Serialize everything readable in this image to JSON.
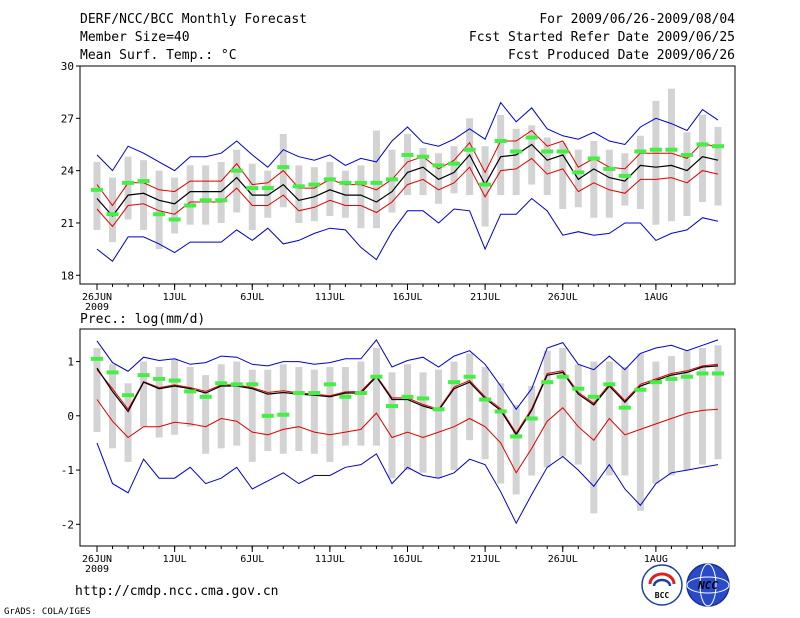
{
  "header": {
    "title": "DERF/NCC/BCC Monthly Forecast",
    "member_size": "Member Size=40",
    "period": "For 2009/06/26-2009/08/04",
    "refer_date": "Fcst Started Refer Date 2009/06/25",
    "produced_date": "Fcst Produced Date 2009/06/26"
  },
  "footer": {
    "url": "http://cmdp.ncc.cma.gov.cn",
    "grads": "GrADS: COLA/IGES",
    "logo_bcc_text": "BCC",
    "logo_ncc_text": "NCC"
  },
  "colors": {
    "ensemble_mean": "#000000",
    "inner_range": "#e00000",
    "outer_range": "#0000cc",
    "member_bar": "#d3d3d3",
    "observed_marker": "#44ee44"
  },
  "chart_data": [
    {
      "type": "line",
      "title": "Mean Surf. Temp.: °C",
      "x_start": "2009-06-26",
      "x_tick_labels": [
        "26JUN",
        "1JUL",
        "6JUL",
        "11JUL",
        "16JUL",
        "21JUL",
        "26JUL",
        "1AUG"
      ],
      "x_tick_days": [
        0,
        5,
        10,
        15,
        20,
        25,
        30,
        36
      ],
      "x_year_label": "2009",
      "ylim": [
        17.5,
        30
      ],
      "y_ticks": [
        18,
        21,
        24,
        27,
        30
      ],
      "y_tick_labels": [
        "18",
        "21",
        "24",
        "27",
        "30"
      ],
      "series": [
        {
          "name": "ensemble mean",
          "values": [
            22.4,
            21.4,
            22.6,
            22.7,
            22.3,
            22.1,
            22.8,
            22.8,
            22.8,
            23.6,
            22.6,
            22.6,
            23.2,
            22.3,
            22.5,
            22.9,
            22.6,
            22.6,
            22.2,
            22.8,
            23.9,
            24.2,
            23.5,
            23.9,
            24.9,
            23.2,
            24.8,
            24.9,
            25.5,
            24.6,
            24.9,
            23.5,
            24.1,
            23.6,
            23.4,
            24.3,
            24.2,
            24.3,
            24.0,
            24.8,
            24.6
          ]
        },
        {
          "name": "upper inner",
          "values": [
            23.2,
            22.0,
            23.3,
            23.3,
            22.9,
            22.8,
            23.4,
            23.4,
            23.4,
            24.4,
            23.2,
            23.3,
            24.0,
            23.0,
            23.0,
            23.5,
            23.2,
            23.2,
            22.9,
            23.5,
            24.5,
            24.8,
            24.1,
            24.6,
            25.6,
            23.9,
            25.7,
            25.7,
            26.3,
            25.4,
            25.7,
            24.2,
            24.7,
            24.2,
            24.1,
            25.0,
            25.0,
            25.0,
            24.7,
            25.6,
            25.3
          ]
        },
        {
          "name": "lower inner",
          "values": [
            21.8,
            20.8,
            22.0,
            22.1,
            21.7,
            21.5,
            22.2,
            22.2,
            22.2,
            23.0,
            22.0,
            22.0,
            22.6,
            21.7,
            21.9,
            22.3,
            22.0,
            22.0,
            21.6,
            22.2,
            23.2,
            23.5,
            22.9,
            23.3,
            24.2,
            22.5,
            24.0,
            24.1,
            24.7,
            23.8,
            24.1,
            22.8,
            23.3,
            22.9,
            22.7,
            23.5,
            23.5,
            23.6,
            23.3,
            24.0,
            23.8
          ]
        },
        {
          "name": "max",
          "values": [
            24.9,
            24.0,
            25.4,
            25.0,
            24.5,
            24.0,
            24.8,
            24.8,
            25.0,
            25.7,
            24.9,
            24.2,
            25.2,
            24.8,
            24.6,
            24.9,
            24.3,
            24.7,
            24.5,
            25.7,
            26.5,
            25.6,
            25.4,
            25.8,
            26.4,
            25.8,
            27.9,
            26.8,
            27.6,
            26.4,
            26.0,
            25.8,
            26.2,
            25.7,
            25.5,
            26.5,
            27.0,
            26.7,
            26.3,
            27.5,
            26.9
          ]
        },
        {
          "name": "min",
          "values": [
            19.5,
            18.8,
            20.2,
            20.2,
            19.8,
            19.3,
            19.9,
            19.9,
            19.9,
            20.6,
            20.0,
            20.7,
            19.8,
            20.0,
            20.4,
            20.7,
            20.6,
            19.6,
            18.9,
            20.5,
            21.7,
            21.7,
            21.0,
            21.8,
            21.7,
            19.5,
            21.5,
            21.5,
            22.4,
            21.7,
            20.3,
            20.5,
            20.3,
            20.4,
            21.0,
            21.0,
            20.0,
            20.4,
            20.6,
            21.3,
            21.1
          ]
        },
        {
          "name": "bar top",
          "values": [
            24.5,
            23.6,
            24.8,
            24.6,
            24.0,
            23.6,
            24.3,
            24.3,
            24.5,
            25.2,
            24.4,
            24.0,
            26.1,
            24.3,
            24.2,
            24.5,
            24.0,
            24.3,
            26.3,
            25.2,
            26.1,
            25.3,
            25.0,
            25.4,
            27.0,
            25.4,
            27.2,
            26.4,
            26.6,
            25.9,
            25.6,
            25.2,
            25.7,
            25.2,
            25.0,
            26.0,
            28.0,
            28.7,
            26.2,
            27.2,
            26.5
          ]
        },
        {
          "name": "bar bottom",
          "values": [
            20.6,
            19.9,
            21.2,
            20.6,
            19.5,
            20.4,
            20.9,
            20.9,
            21.0,
            21.6,
            20.6,
            21.3,
            21.9,
            21.0,
            21.1,
            21.4,
            21.3,
            20.7,
            20.7,
            21.6,
            22.6,
            22.6,
            22.1,
            22.7,
            22.6,
            20.8,
            22.6,
            22.6,
            23.2,
            22.6,
            21.8,
            21.9,
            21.3,
            21.3,
            22.0,
            21.8,
            20.9,
            21.1,
            21.4,
            22.2,
            22.0
          ]
        },
        {
          "name": "observed",
          "values": [
            22.9,
            21.5,
            23.3,
            23.4,
            21.5,
            21.2,
            22.0,
            22.3,
            22.3,
            24.0,
            23.0,
            23.0,
            24.2,
            23.1,
            23.2,
            23.5,
            23.3,
            23.3,
            23.3,
            23.5,
            24.9,
            24.8,
            24.3,
            24.4,
            25.2,
            23.2,
            25.7,
            25.1,
            25.9,
            25.1,
            25.1,
            23.9,
            24.7,
            24.1,
            23.7,
            25.1,
            25.2,
            25.2,
            24.9,
            25.5,
            25.4
          ]
        }
      ]
    },
    {
      "type": "line",
      "title": "Prec.: log(mm/d)",
      "x_start": "2009-06-26",
      "x_tick_labels": [
        "26JUN",
        "1JUL",
        "6JUL",
        "11JUL",
        "16JUL",
        "21JUL",
        "26JUL",
        "1AUG"
      ],
      "x_tick_days": [
        0,
        5,
        10,
        15,
        20,
        25,
        30,
        36
      ],
      "x_year_label": "2009",
      "ylim": [
        -2.4,
        1.6
      ],
      "y_ticks": [
        -2,
        -1,
        0,
        1
      ],
      "y_tick_labels": [
        "-2",
        "-1",
        "0",
        "1"
      ],
      "series": [
        {
          "name": "ensemble mean",
          "values": [
            0.88,
            0.45,
            0.08,
            0.62,
            0.5,
            0.55,
            0.5,
            0.42,
            0.55,
            0.55,
            0.5,
            0.4,
            0.43,
            0.4,
            0.38,
            0.35,
            0.42,
            0.42,
            0.72,
            0.3,
            0.3,
            0.18,
            0.1,
            0.5,
            0.62,
            0.32,
            0.1,
            -0.35,
            0.1,
            0.75,
            0.8,
            0.4,
            0.2,
            0.55,
            0.25,
            0.55,
            0.65,
            0.75,
            0.8,
            0.9,
            0.92
          ]
        },
        {
          "name": "upper inner",
          "values": [
            0.85,
            0.5,
            0.12,
            0.63,
            0.52,
            0.57,
            0.52,
            0.45,
            0.57,
            0.57,
            0.52,
            0.43,
            0.46,
            0.42,
            0.4,
            0.37,
            0.44,
            0.45,
            0.74,
            0.33,
            0.33,
            0.21,
            0.12,
            0.53,
            0.65,
            0.35,
            0.13,
            -0.32,
            0.13,
            0.78,
            0.83,
            0.43,
            0.23,
            0.58,
            0.28,
            0.58,
            0.68,
            0.78,
            0.83,
            0.92,
            0.95
          ]
        },
        {
          "name": "lower inner",
          "values": [
            0.3,
            -0.1,
            -0.4,
            -0.2,
            -0.2,
            -0.12,
            -0.15,
            -0.2,
            -0.05,
            -0.1,
            -0.3,
            -0.35,
            -0.25,
            -0.2,
            -0.3,
            -0.35,
            -0.3,
            -0.25,
            0.05,
            -0.4,
            -0.3,
            -0.4,
            -0.3,
            -0.2,
            -0.05,
            -0.2,
            -0.5,
            -1.05,
            -0.6,
            -0.1,
            0.15,
            -0.2,
            -0.45,
            -0.05,
            -0.35,
            -0.25,
            -0.15,
            -0.05,
            0.05,
            0.1,
            0.12
          ]
        },
        {
          "name": "max",
          "values": [
            1.38,
            0.98,
            0.82,
            1.08,
            1.02,
            1.05,
            0.95,
            0.98,
            1.1,
            1.08,
            0.95,
            0.92,
            1.0,
            1.0,
            0.95,
            0.98,
            1.05,
            1.05,
            1.4,
            0.9,
            1.02,
            1.08,
            0.9,
            1.1,
            1.2,
            0.95,
            0.55,
            0.12,
            0.5,
            1.25,
            1.35,
            0.95,
            0.85,
            1.1,
            0.85,
            1.15,
            1.25,
            1.3,
            1.2,
            1.3,
            1.4
          ]
        },
        {
          "name": "min",
          "values": [
            -0.5,
            -1.25,
            -1.42,
            -0.8,
            -1.15,
            -1.15,
            -0.95,
            -1.25,
            -1.15,
            -0.95,
            -1.35,
            -1.2,
            -1.05,
            -1.25,
            -1.1,
            -1.1,
            -0.95,
            -0.9,
            -0.7,
            -1.25,
            -0.95,
            -1.1,
            -1.15,
            -1.05,
            -0.8,
            -0.9,
            -1.4,
            -1.98,
            -1.45,
            -0.95,
            -0.75,
            -1.0,
            -1.3,
            -0.9,
            -1.35,
            -1.65,
            -1.25,
            -1.05,
            -1.0,
            -0.95,
            -0.9
          ]
        },
        {
          "name": "bar top",
          "values": [
            1.25,
            0.95,
            0.6,
            1.0,
            0.9,
            1.05,
            0.9,
            0.75,
            0.95,
            1.0,
            0.85,
            0.85,
            0.95,
            0.9,
            0.85,
            0.9,
            0.9,
            1.0,
            1.25,
            0.8,
            0.95,
            0.8,
            0.85,
            1.0,
            1.15,
            0.9,
            0.6,
            0.2,
            0.55,
            1.2,
            1.25,
            0.95,
            1.0,
            1.0,
            0.9,
            1.15,
            1.0,
            1.1,
            1.2,
            1.25,
            1.3
          ]
        },
        {
          "name": "bar bottom",
          "values": [
            -0.3,
            -0.6,
            -0.85,
            -0.2,
            -0.4,
            -0.35,
            -0.2,
            -0.7,
            -0.6,
            -0.55,
            -0.85,
            -0.65,
            -0.7,
            -0.65,
            -0.7,
            -0.85,
            -0.55,
            -0.55,
            -0.55,
            -1.15,
            -1.0,
            -1.05,
            -1.15,
            -1.0,
            -0.45,
            -0.8,
            -1.25,
            -1.45,
            -1.1,
            -0.95,
            -0.75,
            -0.9,
            -1.8,
            -1.1,
            -1.1,
            -1.75,
            -1.25,
            -1.1,
            -1.0,
            -0.9,
            -0.8
          ]
        },
        {
          "name": "observed",
          "values": [
            1.05,
            0.8,
            0.38,
            0.75,
            0.68,
            0.65,
            0.45,
            0.35,
            0.6,
            0.58,
            0.58,
            0.0,
            0.02,
            0.42,
            0.42,
            0.58,
            0.35,
            0.42,
            0.72,
            0.18,
            0.35,
            0.32,
            0.12,
            0.62,
            0.72,
            0.3,
            0.08,
            -0.38,
            -0.05,
            0.62,
            0.72,
            0.5,
            0.35,
            0.58,
            0.15,
            0.48,
            0.62,
            0.68,
            0.72,
            0.78,
            0.78
          ]
        }
      ]
    }
  ]
}
